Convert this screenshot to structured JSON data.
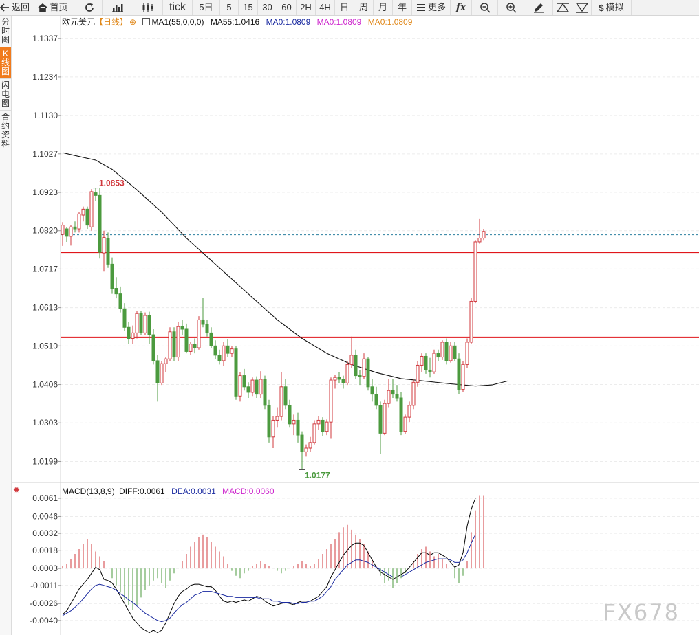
{
  "toolbar": {
    "items": [
      {
        "label": "返回",
        "icon": "back-arrow-icon"
      },
      {
        "label": "首页",
        "icon": "home-icon"
      },
      {
        "label": "",
        "icon": "refresh-icon"
      },
      {
        "label": "",
        "icon": "bar-chart-icon"
      },
      {
        "label": "",
        "icon": "candlestick-icon"
      },
      {
        "label": "tick",
        "icon": ""
      },
      {
        "label": "5日",
        "icon": ""
      },
      {
        "label": "5",
        "icon": ""
      },
      {
        "label": "15",
        "icon": ""
      },
      {
        "label": "30",
        "icon": ""
      },
      {
        "label": "60",
        "icon": ""
      },
      {
        "label": "2H",
        "icon": ""
      },
      {
        "label": "4H",
        "icon": ""
      },
      {
        "label": "日",
        "icon": ""
      },
      {
        "label": "周",
        "icon": ""
      },
      {
        "label": "月",
        "icon": ""
      },
      {
        "label": "年",
        "icon": ""
      },
      {
        "label": "更多",
        "icon": "menu-icon"
      },
      {
        "label": "",
        "icon": "fx-icon"
      },
      {
        "label": "",
        "icon": "zoom-out-icon"
      },
      {
        "label": "",
        "icon": "zoom-in-icon"
      },
      {
        "label": "",
        "icon": "pencil-icon"
      },
      {
        "label": "",
        "icon": "triangle-up-icon"
      },
      {
        "label": "",
        "icon": "triangle-down-icon"
      },
      {
        "label": "模拟",
        "icon": "dollar-icon"
      }
    ]
  },
  "sidebar": {
    "items": [
      {
        "label": "分时图",
        "active": false
      },
      {
        "label": "K线图",
        "active": true
      },
      {
        "label": "闪电图",
        "active": false
      },
      {
        "label": "合约资料",
        "active": false
      }
    ]
  },
  "legend_main": {
    "symbol": "欧元美元",
    "period": "【日线】",
    "ma1": "MA1(55,0,0,0)",
    "ma55": "MA55:1.0416",
    "ma0a": "MA0:1.0809",
    "ma0b": "MA0:1.0809",
    "ma0c": "MA0:1.0809"
  },
  "legend_macd": {
    "name": "MACD(13,8,9)",
    "diff": "DIFF:0.0061",
    "dea": "DEA:0.0031",
    "macd": "MACD:0.0060"
  },
  "watermark": "FX678",
  "colors": {
    "up": "#d1383d",
    "down": "#4b9a3e",
    "ma": "#111111",
    "resistance": "#e0161b",
    "current_line": "#2a7f9f",
    "dea": "#1a2aa0",
    "diff": "#000000",
    "macd_legend": "#cc22cc",
    "ma0a": "#1a2aa0",
    "ma0b": "#cc22cc",
    "ma0c": "#e0881a",
    "high_label": "#d1383d",
    "low_label": "#4b9a3e"
  },
  "chart_data": {
    "type": "candlestick",
    "title": "欧元美元",
    "price_axis": {
      "ticks": [
        "1.1337",
        "1.1234",
        "1.1130",
        "1.1027",
        "1.0923",
        "1.0820",
        "1.0717",
        "1.0613",
        "1.0510",
        "1.0406",
        "1.0303",
        "1.0199"
      ],
      "ylim": [
        1.0161,
        1.1367
      ]
    },
    "high_label": "1.0853",
    "low_label": "1.0177",
    "current_price": 1.0809,
    "horizontal_lines": [
      1.0762,
      1.0533
    ],
    "ma55": [
      [
        0,
        1.103
      ],
      [
        8,
        1.101
      ],
      [
        12,
        1.0985
      ],
      [
        18,
        1.093
      ],
      [
        24,
        1.087
      ],
      [
        30,
        1.08
      ],
      [
        38,
        1.072
      ],
      [
        45,
        1.065
      ],
      [
        52,
        1.058
      ],
      [
        58,
        1.053
      ],
      [
        64,
        1.049
      ],
      [
        70,
        1.046
      ],
      [
        76,
        1.0438
      ],
      [
        82,
        1.0422
      ],
      [
        88,
        1.0415
      ],
      [
        94,
        1.0408
      ],
      [
        100,
        1.0402
      ],
      [
        104,
        1.0405
      ],
      [
        108,
        1.0416
      ]
    ],
    "ohlc": [
      [
        1.081,
        1.0843,
        1.0779,
        1.0835
      ],
      [
        1.0825,
        1.083,
        1.079,
        1.0805
      ],
      [
        1.0805,
        1.0835,
        1.078,
        1.083
      ],
      [
        1.083,
        1.0845,
        1.0815,
        1.0825
      ],
      [
        1.0825,
        1.087,
        1.0815,
        1.0865
      ],
      [
        1.0862,
        1.0885,
        1.0845,
        1.0878
      ],
      [
        1.0878,
        1.0885,
        1.0825,
        1.0835
      ],
      [
        1.083,
        1.0932,
        1.082,
        1.0925
      ],
      [
        1.0922,
        1.0935,
        1.09,
        1.0915
      ],
      [
        1.0915,
        1.0935,
        1.0745,
        1.0762
      ],
      [
        1.076,
        1.082,
        1.071,
        1.0802
      ],
      [
        1.08,
        1.0815,
        1.072,
        1.073
      ],
      [
        1.073,
        1.0748,
        1.065,
        1.0665
      ],
      [
        1.0665,
        1.0695,
        1.0638,
        1.065
      ],
      [
        1.065,
        1.067,
        1.06,
        1.061
      ],
      [
        1.061,
        1.0625,
        1.055,
        1.056
      ],
      [
        1.056,
        1.0575,
        1.0515,
        1.053
      ],
      [
        1.053,
        1.0565,
        1.0515,
        1.0545
      ],
      [
        1.0545,
        1.0603,
        1.053,
        1.0597
      ],
      [
        1.0597,
        1.0605,
        1.054,
        1.0545
      ],
      [
        1.0545,
        1.06,
        1.054,
        1.0592
      ],
      [
        1.0592,
        1.0602,
        1.0515,
        1.054
      ],
      [
        1.054,
        1.0555,
        1.046,
        1.047
      ],
      [
        1.047,
        1.0485,
        1.036,
        1.041
      ],
      [
        1.041,
        1.047,
        1.0405,
        1.0462
      ],
      [
        1.0462,
        1.048,
        1.044,
        1.0475
      ],
      [
        1.0475,
        1.056,
        1.047,
        1.0548
      ],
      [
        1.0548,
        1.056,
        1.047,
        1.048
      ],
      [
        1.048,
        1.0575,
        1.047,
        1.0562
      ],
      [
        1.0562,
        1.058,
        1.054,
        1.0555
      ],
      [
        1.0555,
        1.057,
        1.049,
        1.0495
      ],
      [
        1.0495,
        1.052,
        1.0485,
        1.0515
      ],
      [
        1.0515,
        1.053,
        1.049,
        1.0505
      ],
      [
        1.0505,
        1.059,
        1.05,
        1.058
      ],
      [
        1.058,
        1.064,
        1.056,
        1.0568
      ],
      [
        1.0568,
        1.058,
        1.0535,
        1.0545
      ],
      [
        1.0545,
        1.056,
        1.0505,
        1.051
      ],
      [
        1.051,
        1.0525,
        1.0475,
        1.0485
      ],
      [
        1.0485,
        1.05,
        1.046,
        1.047
      ],
      [
        1.047,
        1.052,
        1.0455,
        1.051
      ],
      [
        1.051,
        1.0528,
        1.048,
        1.049
      ],
      [
        1.049,
        1.051,
        1.048,
        1.0502
      ],
      [
        1.0502,
        1.051,
        1.0365,
        1.0375
      ],
      [
        1.0375,
        1.044,
        1.036,
        1.043
      ],
      [
        1.043,
        1.0448,
        1.039,
        1.04
      ],
      [
        1.04,
        1.0412,
        1.037,
        1.0385
      ],
      [
        1.0385,
        1.0425,
        1.0375,
        1.0418
      ],
      [
        1.0418,
        1.0428,
        1.037,
        1.038
      ],
      [
        1.038,
        1.0442,
        1.037,
        1.042
      ],
      [
        1.042,
        1.043,
        1.034,
        1.035
      ],
      [
        1.035,
        1.0365,
        1.025,
        1.0265
      ],
      [
        1.0265,
        1.032,
        1.0235,
        1.031
      ],
      [
        1.031,
        1.0345,
        1.029,
        1.032
      ],
      [
        1.032,
        1.044,
        1.031,
        1.04
      ],
      [
        1.04,
        1.042,
        1.034,
        1.035
      ],
      [
        1.035,
        1.0365,
        1.029,
        1.03
      ],
      [
        1.03,
        1.0325,
        1.027,
        1.031
      ],
      [
        1.031,
        1.033,
        1.025,
        1.027
      ],
      [
        1.027,
        1.028,
        1.0177,
        1.0225
      ],
      [
        1.0225,
        1.0245,
        1.0212,
        1.0235
      ],
      [
        1.0235,
        1.0265,
        1.0225,
        1.025
      ],
      [
        1.025,
        1.031,
        1.0245,
        1.03
      ],
      [
        1.03,
        1.032,
        1.0285,
        1.031
      ],
      [
        1.031,
        1.0318,
        1.0268,
        1.028
      ],
      [
        1.028,
        1.0312,
        1.027,
        1.0305
      ],
      [
        1.0305,
        1.0425,
        1.026,
        1.0418
      ],
      [
        1.0418,
        1.0432,
        1.0395,
        1.0425
      ],
      [
        1.0425,
        1.044,
        1.041,
        1.042
      ],
      [
        1.042,
        1.043,
        1.0395,
        1.041
      ],
      [
        1.041,
        1.047,
        1.0405,
        1.046
      ],
      [
        1.046,
        1.0535,
        1.045,
        1.0485
      ],
      [
        1.0485,
        1.05,
        1.042,
        1.043
      ],
      [
        1.043,
        1.0445,
        1.0405,
        1.0428
      ],
      [
        1.0428,
        1.049,
        1.042,
        1.0475
      ],
      [
        1.0475,
        1.048,
        1.039,
        1.04
      ],
      [
        1.04,
        1.042,
        1.036,
        1.038
      ],
      [
        1.038,
        1.04,
        1.034,
        1.035
      ],
      [
        1.035,
        1.036,
        1.022,
        1.0275
      ],
      [
        1.0275,
        1.0365,
        1.027,
        1.0355
      ],
      [
        1.0355,
        1.042,
        1.0345,
        1.039
      ],
      [
        1.039,
        1.042,
        1.037,
        1.038
      ],
      [
        1.038,
        1.0405,
        1.036,
        1.037
      ],
      [
        1.037,
        1.0385,
        1.027,
        1.028
      ],
      [
        1.028,
        1.0325,
        1.0272,
        1.0318
      ],
      [
        1.0318,
        1.036,
        1.0305,
        1.035
      ],
      [
        1.035,
        1.042,
        1.034,
        1.0412
      ],
      [
        1.0412,
        1.047,
        1.04,
        1.0458
      ],
      [
        1.0458,
        1.049,
        1.044,
        1.0482
      ],
      [
        1.0482,
        1.049,
        1.0435,
        1.0445
      ],
      [
        1.0445,
        1.0478,
        1.0425,
        1.044
      ],
      [
        1.044,
        1.05,
        1.0435,
        1.049
      ],
      [
        1.049,
        1.05,
        1.047,
        1.048
      ],
      [
        1.048,
        1.0525,
        1.0472,
        1.052
      ],
      [
        1.052,
        1.053,
        1.046,
        1.047
      ],
      [
        1.047,
        1.052,
        1.0465,
        1.051
      ],
      [
        1.051,
        1.052,
        1.047,
        1.0475
      ],
      [
        1.0475,
        1.049,
        1.038,
        1.0393
      ],
      [
        1.0393,
        1.047,
        1.0385,
        1.046
      ],
      [
        1.046,
        1.053,
        1.045,
        1.052
      ],
      [
        1.052,
        1.064,
        1.0515,
        1.063
      ],
      [
        1.063,
        1.0795,
        1.0625,
        1.079
      ],
      [
        1.079,
        1.0853,
        1.0785,
        1.08
      ],
      [
        1.08,
        1.0825,
        1.0795,
        1.0818
      ]
    ],
    "macd_axis": {
      "ticks": [
        "0.0061",
        "0.0046",
        "0.0032",
        "0.0018",
        "0.0003",
        "-0.0011",
        "-0.0026",
        "-0.0040"
      ],
      "ylim": [
        -0.0052,
        0.0065
      ]
    },
    "macd_hist": [
      0.0002,
      0.0004,
      0.0008,
      0.0012,
      0.0016,
      0.002,
      0.0024,
      0.002,
      0.0014,
      0.001,
      0.0006,
      0.0,
      -0.0008,
      -0.0014,
      -0.002,
      -0.0026,
      -0.003,
      -0.0034,
      -0.003,
      -0.0024,
      -0.0018,
      -0.0014,
      -0.001,
      -0.0008,
      -0.0012,
      -0.0016,
      -0.001,
      -0.0004,
      0.0,
      0.0006,
      0.0012,
      0.0018,
      0.0022,
      0.0026,
      0.0028,
      0.0026,
      0.0022,
      0.0018,
      0.0014,
      0.001,
      0.0004,
      -0.0002,
      -0.0006,
      -0.0008,
      -0.0004,
      -0.0002,
      0.0002,
      0.0004,
      0.0006,
      0.0004,
      0.0002,
      0.0,
      -0.0002,
      -0.0004,
      -0.0002,
      0.0,
      0.0002,
      0.0004,
      0.0006,
      0.0004,
      0.0002,
      0.0004,
      0.0008,
      0.0012,
      0.0016,
      0.002,
      0.0024,
      0.003,
      0.0034,
      0.0036,
      0.0032,
      0.0028,
      0.0024,
      0.002,
      0.0014,
      0.0008,
      0.0002,
      -0.0006,
      -0.0012,
      -0.001,
      -0.0016,
      -0.0012,
      -0.0008,
      -0.0004,
      0.0,
      0.0006,
      0.0012,
      0.0016,
      0.0018,
      0.0014,
      0.001,
      0.0012,
      0.0008,
      0.0004,
      0.0,
      -0.0008,
      -0.0012,
      -0.0006,
      0.0006,
      0.003,
      0.0048,
      0.006,
      0.006
    ],
    "macd_diff": [
      -0.0035,
      -0.0032,
      -0.0026,
      -0.002,
      -0.0014,
      -0.001,
      -0.0006,
      -0.0001,
      0.0004,
      0.0002,
      -0.0006,
      -0.0007,
      -0.0009,
      -0.0014,
      -0.002,
      -0.0026,
      -0.0032,
      -0.0038,
      -0.0042,
      -0.0046,
      -0.0048,
      -0.005,
      -0.0048,
      -0.005,
      -0.0048,
      -0.0042,
      -0.0034,
      -0.0026,
      -0.002,
      -0.0016,
      -0.0014,
      -0.0011,
      -0.001,
      -0.001,
      -0.0011,
      -0.0012,
      -0.0012,
      -0.0015,
      -0.002,
      -0.0024,
      -0.0025,
      -0.0024,
      -0.0025,
      -0.0024,
      -0.0023,
      -0.0024,
      -0.0022,
      -0.002,
      -0.0021,
      -0.0024,
      -0.0026,
      -0.0028,
      -0.0027,
      -0.0026,
      -0.0025,
      -0.0026,
      -0.0027,
      -0.0025,
      -0.0024,
      -0.0024,
      -0.0024,
      -0.0022,
      -0.002,
      -0.0016,
      -0.0012,
      -0.0004,
      0.0002,
      0.0008,
      0.0014,
      0.0018,
      0.0022,
      0.0024,
      0.0024,
      0.0022,
      0.0016,
      0.001,
      0.0004,
      0.0,
      -0.0002,
      -0.0004,
      -0.0006,
      -0.0004,
      -0.0002,
      0.0,
      0.0004,
      0.0008,
      0.0012,
      0.0016,
      0.0016,
      0.0014,
      0.0016,
      0.0016,
      0.0014,
      0.0012,
      0.0008,
      0.0004,
      0.0006,
      0.0016,
      0.0038,
      0.0052,
      0.0061
    ],
    "macd_dea": [
      -0.0036,
      -0.0034,
      -0.0032,
      -0.0029,
      -0.0026,
      -0.0022,
      -0.0018,
      -0.0014,
      -0.0011,
      -0.001,
      -0.0011,
      -0.0012,
      -0.0013,
      -0.0015,
      -0.0018,
      -0.002,
      -0.0023,
      -0.0025,
      -0.0028,
      -0.0031,
      -0.0034,
      -0.0036,
      -0.0038,
      -0.004,
      -0.0041,
      -0.004,
      -0.0038,
      -0.0034,
      -0.003,
      -0.0027,
      -0.0025,
      -0.0022,
      -0.0019,
      -0.0018,
      -0.0016,
      -0.0016,
      -0.0016,
      -0.0017,
      -0.0018,
      -0.0019,
      -0.002,
      -0.002,
      -0.0021,
      -0.0021,
      -0.0021,
      -0.0021,
      -0.0021,
      -0.0021,
      -0.0022,
      -0.0022,
      -0.0022,
      -0.0024,
      -0.0024,
      -0.0025,
      -0.0025,
      -0.0025,
      -0.0026,
      -0.0026,
      -0.0025,
      -0.0025,
      -0.0024,
      -0.0024,
      -0.0022,
      -0.002,
      -0.0016,
      -0.0012,
      -0.0006,
      -0.0002,
      0.0002,
      0.0006,
      0.0008,
      0.001,
      0.001,
      0.0009,
      0.0008,
      0.0006,
      0.0004,
      0.0002,
      0.0,
      -0.0002,
      -0.0004,
      -0.0004,
      -0.0004,
      -0.0002,
      0.0,
      0.0002,
      0.0004,
      0.0006,
      0.0008,
      0.0009,
      0.001,
      0.0011,
      0.0011,
      0.0011,
      0.001,
      0.0008,
      0.0008,
      0.001,
      0.0016,
      0.0024,
      0.0031
    ]
  }
}
